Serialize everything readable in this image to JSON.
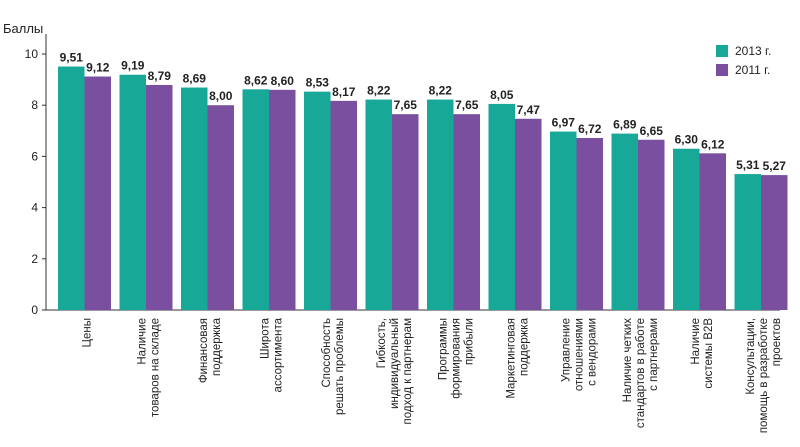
{
  "chart_data": {
    "type": "bar",
    "ylabel": "Баллы",
    "ylim": [
      0,
      10
    ],
    "yticks": [
      0,
      2,
      4,
      6,
      8,
      10
    ],
    "grid": false,
    "legend_position": "top-right",
    "categories": [
      [
        "Цены"
      ],
      [
        "Наличие",
        "товаров на складе"
      ],
      [
        "Финансовая",
        "поддержка"
      ],
      [
        "Широта",
        "ассортимента"
      ],
      [
        "Способность",
        "решать проблемы"
      ],
      [
        "Гибкость,",
        "индивидуальный",
        "подход к партнерам"
      ],
      [
        "Программы",
        "формирования",
        "прибыли"
      ],
      [
        "Маркетинговая",
        "поддержка"
      ],
      [
        "Управление",
        "отношениями",
        "с вендорами"
      ],
      [
        "Наличие четких",
        "стандартов в работе",
        "с партнерами"
      ],
      [
        "Наличие",
        "системы B2B"
      ],
      [
        "Консультации,",
        "помощь в разработке",
        "проектов"
      ]
    ],
    "series": [
      {
        "name": "2013 г.",
        "color": "#17a898",
        "values": [
          9.51,
          9.19,
          8.69,
          8.62,
          8.53,
          8.22,
          8.22,
          8.05,
          6.97,
          6.89,
          6.3,
          5.31
        ],
        "labels": [
          "9,51",
          "9,19",
          "8,69",
          "8,62",
          "8,53",
          "8,22",
          "8,22",
          "8,05",
          "6,97",
          "6,89",
          "6,30",
          "5,31"
        ]
      },
      {
        "name": "2011 г.",
        "color": "#7b4fa0",
        "values": [
          9.12,
          8.79,
          8.0,
          8.6,
          8.17,
          7.65,
          7.65,
          7.47,
          6.72,
          6.65,
          6.12,
          5.27
        ],
        "labels": [
          "9,12",
          "8,79",
          "8,00",
          "8,60",
          "8,17",
          "7,65",
          "7,65",
          "7,47",
          "6,72",
          "6,65",
          "6,12",
          "5,27"
        ]
      }
    ]
  }
}
